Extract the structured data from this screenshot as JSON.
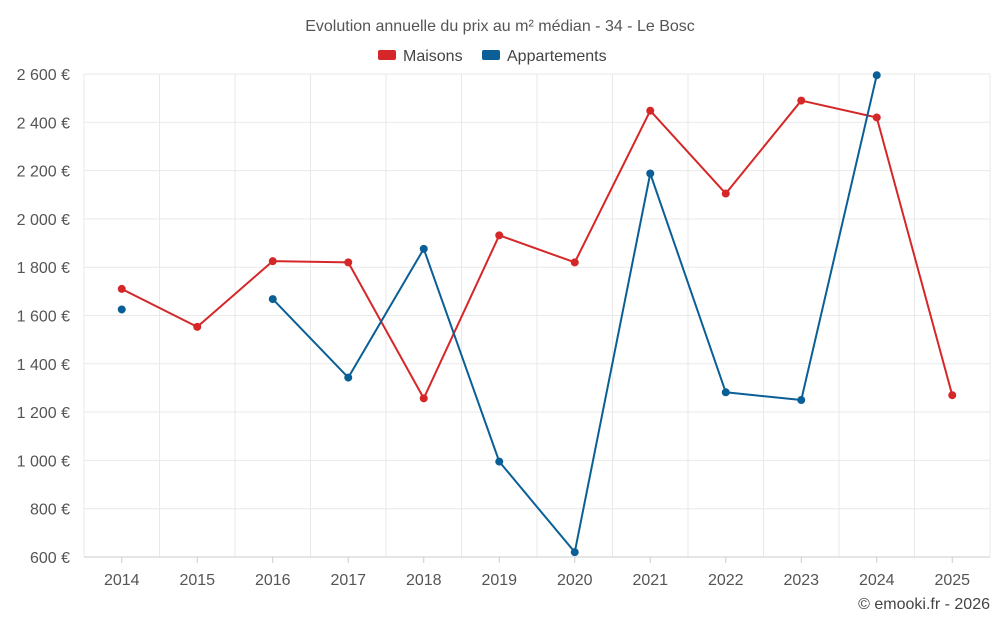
{
  "chart_data": {
    "type": "line",
    "title": "Evolution annuelle du prix au m² médian - 34 - Le Bosc",
    "categories": [
      "2014",
      "2015",
      "2016",
      "2017",
      "2018",
      "2019",
      "2020",
      "2021",
      "2022",
      "2023",
      "2024",
      "2025"
    ],
    "ylim": [
      600,
      2600
    ],
    "yticks": [
      600,
      800,
      1000,
      1200,
      1400,
      1600,
      1800,
      2000,
      2200,
      2400,
      2600
    ],
    "ytick_labels": [
      "600 €",
      "800 €",
      "1 000 €",
      "1 200 €",
      "1 400 €",
      "1 600 €",
      "1 800 €",
      "2 000 €",
      "2 200 €",
      "2 400 €",
      "2 600 €"
    ],
    "xlabel": "",
    "ylabel": "",
    "grid": true,
    "legend_position": "top-center",
    "series": [
      {
        "name": "Maisons",
        "color": "#d62728",
        "values": [
          1710,
          1553,
          1825,
          1820,
          1257,
          1932,
          1820,
          2448,
          2105,
          2490,
          2420,
          1270
        ]
      },
      {
        "name": "Appartements",
        "color": "#0a5f96",
        "values": [
          1625,
          null,
          1668,
          1343,
          1876,
          995,
          620,
          2188,
          1282,
          1250,
          2595,
          null
        ]
      }
    ]
  },
  "credit": "© emooki.fr - 2026"
}
